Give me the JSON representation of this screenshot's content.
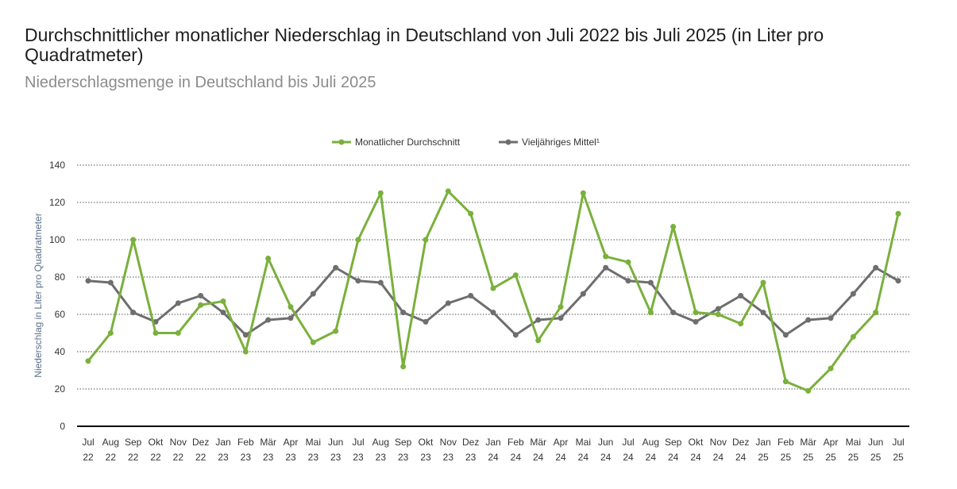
{
  "chart_data": {
    "type": "line",
    "title": "Durchschnittlicher monatlicher Niederschlag in Deutschland von Juli 2022 bis Juli 2025 (in Liter pro Quadratmeter)",
    "subtitle": "Niederschlagsmenge in Deutschland bis Juli 2025",
    "ylabel": "Niederschlag in Liter pro Quadratmeter",
    "xlabel": "",
    "ylim": [
      0,
      140
    ],
    "yticks": [
      0,
      20,
      40,
      60,
      80,
      100,
      120,
      140
    ],
    "grid": true,
    "legend_position": "top-center",
    "categories": [
      {
        "month": "Jul",
        "year": "22"
      },
      {
        "month": "Aug",
        "year": "22"
      },
      {
        "month": "Sep",
        "year": "22"
      },
      {
        "month": "Okt",
        "year": "22"
      },
      {
        "month": "Nov",
        "year": "22"
      },
      {
        "month": "Dez",
        "year": "22"
      },
      {
        "month": "Jan",
        "year": "23"
      },
      {
        "month": "Feb",
        "year": "23"
      },
      {
        "month": "Mär",
        "year": "23"
      },
      {
        "month": "Apr",
        "year": "23"
      },
      {
        "month": "Mai",
        "year": "23"
      },
      {
        "month": "Jun",
        "year": "23"
      },
      {
        "month": "Jul",
        "year": "23"
      },
      {
        "month": "Aug",
        "year": "23"
      },
      {
        "month": "Sep",
        "year": "23"
      },
      {
        "month": "Okt",
        "year": "23"
      },
      {
        "month": "Nov",
        "year": "23"
      },
      {
        "month": "Dez",
        "year": "23"
      },
      {
        "month": "Jan",
        "year": "24"
      },
      {
        "month": "Feb",
        "year": "24"
      },
      {
        "month": "Mär",
        "year": "24"
      },
      {
        "month": "Apr",
        "year": "24"
      },
      {
        "month": "Mai",
        "year": "24"
      },
      {
        "month": "Jun",
        "year": "24"
      },
      {
        "month": "Jul",
        "year": "24"
      },
      {
        "month": "Aug",
        "year": "24"
      },
      {
        "month": "Sep",
        "year": "24"
      },
      {
        "month": "Okt",
        "year": "24"
      },
      {
        "month": "Nov",
        "year": "24"
      },
      {
        "month": "Dez",
        "year": "24"
      },
      {
        "month": "Jan",
        "year": "25"
      },
      {
        "month": "Feb",
        "year": "25"
      },
      {
        "month": "Mär",
        "year": "25"
      },
      {
        "month": "Apr",
        "year": "25"
      },
      {
        "month": "Mai",
        "year": "25"
      },
      {
        "month": "Jun",
        "year": "25"
      },
      {
        "month": "Jul",
        "year": "25"
      }
    ],
    "series": [
      {
        "name": "Monatlicher Durchschnitt",
        "color": "#7ab03c",
        "values": [
          35,
          50,
          100,
          50,
          50,
          65,
          67,
          40,
          90,
          64,
          45,
          51,
          100,
          125,
          32,
          100,
          126,
          114,
          74,
          81,
          46,
          64,
          125,
          91,
          88,
          61,
          107,
          61,
          60,
          55,
          77,
          24,
          19,
          31,
          48,
          61,
          114
        ]
      },
      {
        "name": "Vieljähriges Mittel¹",
        "color": "#6e6e6e",
        "values": [
          78,
          77,
          61,
          56,
          66,
          70,
          61,
          49,
          57,
          58,
          71,
          85,
          78,
          77,
          61,
          56,
          66,
          70,
          61,
          49,
          57,
          58,
          71,
          85,
          78,
          77,
          61,
          56,
          63,
          70,
          61,
          49,
          57,
          58,
          71,
          85,
          78
        ]
      }
    ]
  }
}
